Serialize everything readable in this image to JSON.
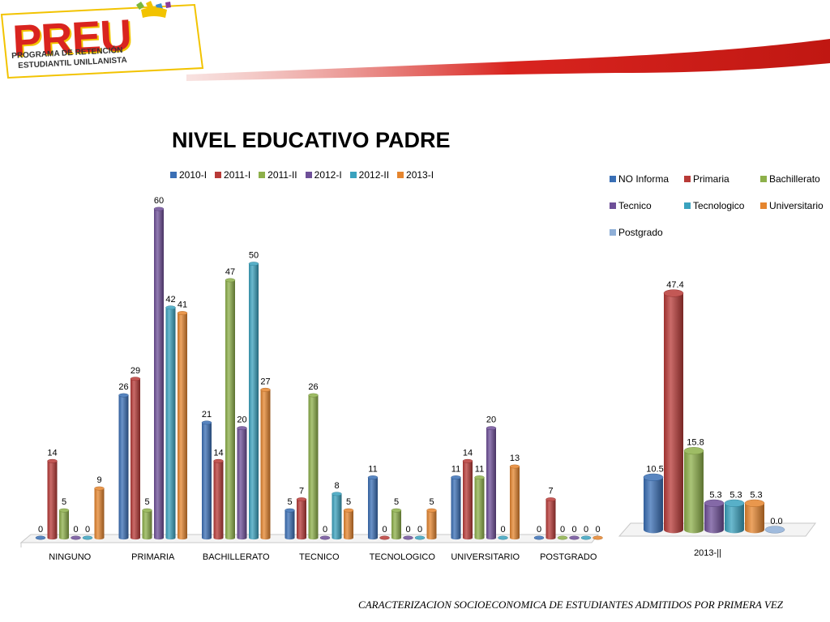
{
  "header": {
    "logo_word": "PREU",
    "logo_line1": "PROGRAMA DE RETENCIÓN",
    "logo_line2": "ESTUDIANTIL UNILLANISTA"
  },
  "footer": {
    "caption": "CARACTERIZACION SOCIOECONOMICA DE ESTUDIANTES ADMITIDOS POR PRIMERA VEZ"
  },
  "colors": {
    "blue": "#3A6FB5",
    "red": "#B83A37",
    "green": "#8DB04A",
    "purple": "#6E4F98",
    "teal": "#3AA2BE",
    "orange": "#E5852E",
    "light_blue": "#8FAFD7",
    "logo_red": "#D9241F",
    "logo_yellow": "#F2C300"
  },
  "chart_data": [
    {
      "type": "bar",
      "title": "NIVEL EDUCATIVO PADRE",
      "categories": [
        "NINGUNO",
        "PRIMARIA",
        "BACHILLERATO",
        "TECNICO",
        "TECNOLOGICO",
        "UNIVERSITARIO",
        "POSTGRADO"
      ],
      "series": [
        {
          "name": "2010-I",
          "color": "#3A6FB5",
          "values": [
            0,
            26,
            21,
            5,
            11,
            11,
            0
          ]
        },
        {
          "name": "2011-I",
          "color": "#B83A37",
          "values": [
            14,
            29,
            14,
            7,
            0,
            14,
            7
          ]
        },
        {
          "name": "2011-II",
          "color": "#8DB04A",
          "values": [
            5,
            5,
            47,
            26,
            5,
            11,
            0
          ]
        },
        {
          "name": "2012-I",
          "color": "#6E4F98",
          "values": [
            0,
            60,
            20,
            0,
            0,
            20,
            0
          ]
        },
        {
          "name": "2012-II",
          "color": "#3AA2BE",
          "values": [
            0,
            42,
            50,
            8,
            0,
            0,
            0
          ]
        },
        {
          "name": "2013-I",
          "color": "#E5852E",
          "values": [
            9,
            41,
            27,
            5,
            5,
            13,
            0
          ]
        }
      ],
      "ylim": [
        0,
        60
      ],
      "legend": "top",
      "grid": false,
      "style": "3d-cylinder"
    },
    {
      "type": "bar",
      "title": "",
      "categories": [
        "2013-||"
      ],
      "series": [
        {
          "name": "NO Informa",
          "color": "#3A6FB5",
          "values": [
            10.5
          ]
        },
        {
          "name": "Primaria",
          "color": "#B83A37",
          "values": [
            47.4
          ]
        },
        {
          "name": "Bachillerato",
          "color": "#8DB04A",
          "values": [
            15.8
          ]
        },
        {
          "name": "Tecnico",
          "color": "#6E4F98",
          "values": [
            5.3
          ]
        },
        {
          "name": "Tecnologico",
          "color": "#3AA2BE",
          "values": [
            5.3
          ]
        },
        {
          "name": "Universitario",
          "color": "#E5852E",
          "values": [
            5.3
          ]
        },
        {
          "name": "Postgrado",
          "color": "#8FAFD7",
          "values": [
            0.0
          ]
        }
      ],
      "value_labels": [
        "10.5",
        "47.4",
        "15.8",
        "5.3",
        "5.3",
        "5.3",
        "0.0"
      ],
      "ylim": [
        0,
        47.4
      ],
      "legend": "top-right",
      "grid": false,
      "style": "3d-cylinder"
    }
  ]
}
